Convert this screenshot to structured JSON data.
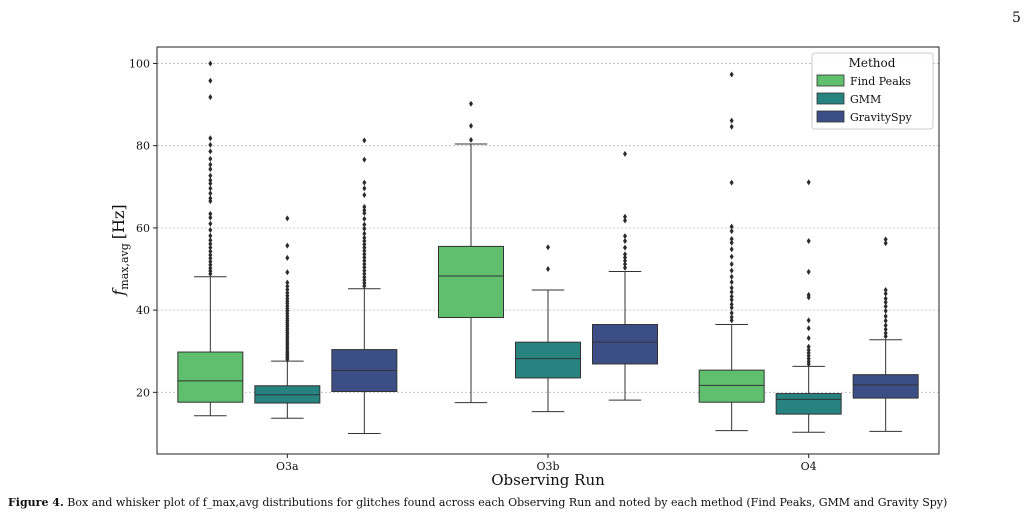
{
  "page_number": "5",
  "caption": {
    "label": "Figure 4.",
    "text": "Box and whisker plot of f_max,avg distributions for glitches found across each Observing Run and noted by each method (Find Peaks, GMM and Gravity Spy)"
  },
  "colors": {
    "Find Peaks": "#5fbf6c",
    "GMM": "#26837f",
    "GravitySpy": "#3c4e86",
    "outlier": "#2b2b2b",
    "grid": "#b8b8b8"
  },
  "chart_data": {
    "type": "box",
    "xlabel": "Observing Run",
    "ylabel_base": "f",
    "ylabel_sub": "max,avg",
    "ylabel_unit": "[Hz]",
    "ylim": [
      5,
      104
    ],
    "yticks": [
      20,
      40,
      60,
      80,
      100
    ],
    "grid": "horizontal",
    "categories": [
      "O3a",
      "O3b",
      "O4"
    ],
    "legend": {
      "title": "Method",
      "position": "top-right"
    },
    "series": [
      {
        "name": "Find Peaks",
        "boxes": [
          {
            "whislo": 14.3,
            "q1": 17.6,
            "med": 22.8,
            "q3": 29.8,
            "whishi": 48.1,
            "fliers": [
              48.8,
              49.5,
              50.2,
              51,
              51.8,
              52.6,
              53.4,
              54.3,
              55.2,
              56.1,
              57,
              58.1,
              59.5,
              61,
              62.5,
              63.4,
              66.5,
              67.2,
              68.4,
              69.6,
              70.8,
              71.6,
              72.7,
              74.3,
              75.4,
              76.8,
              78.6,
              80.2,
              81.8,
              91.8,
              95.8,
              100
            ]
          },
          {
            "whislo": 17.5,
            "q1": 38.2,
            "med": 48.3,
            "q3": 55.5,
            "whishi": 80.4,
            "fliers": [
              81.4,
              84.8,
              90.2
            ]
          },
          {
            "whislo": 10.7,
            "q1": 17.6,
            "med": 21.7,
            "q3": 25.4,
            "whishi": 36.5,
            "fliers": [
              37.5,
              38.3,
              39.3,
              40.6,
              41.4,
              42.5,
              43.3,
              44.4,
              45.4,
              46.8,
              48.1,
              49.6,
              51.2,
              53,
              54.8,
              56.4,
              57.3,
              59.2,
              60.3,
              71,
              84.6,
              86.1,
              97.3
            ]
          }
        ]
      },
      {
        "name": "GMM",
        "boxes": [
          {
            "whislo": 13.7,
            "q1": 17.4,
            "med": 19.4,
            "q3": 21.6,
            "whishi": 27.6,
            "fliers": [
              28,
              28.4,
              28.8,
              29.2,
              29.6,
              30,
              30.5,
              31,
              31.5,
              32,
              32.5,
              33,
              33.5,
              34,
              34.5,
              35,
              35.5,
              36,
              36.5,
              37,
              37.5,
              38,
              38.6,
              39.2,
              39.8,
              40.4,
              41,
              41.6,
              42.2,
              42.8,
              43.5,
              44.2,
              45,
              45.8,
              46.7,
              49.2,
              52.7,
              55.7,
              62.3
            ]
          },
          {
            "whislo": 15.3,
            "q1": 23.5,
            "med": 28.2,
            "q3": 32.2,
            "whishi": 44.9,
            "fliers": [
              50,
              55.3
            ]
          },
          {
            "whislo": 10.3,
            "q1": 14.7,
            "med": 18.3,
            "q3": 19.7,
            "whishi": 26.3,
            "fliers": [
              26.9,
              27.5,
              28.2,
              28.9,
              29.6,
              30.3,
              31.1,
              33.2,
              35.6,
              37.5,
              43.1,
              43.7,
              49.3,
              56.8,
              71.1
            ]
          }
        ]
      },
      {
        "name": "GravitySpy",
        "boxes": [
          {
            "whislo": 10,
            "q1": 20.2,
            "med": 25.3,
            "q3": 30.4,
            "whishi": 45.2,
            "fliers": [
              45.9,
              46.6,
              47.3,
              48,
              48.8,
              49.6,
              50.4,
              51.2,
              52,
              52.8,
              53.6,
              54.4,
              55.2,
              56,
              56.8,
              57.6,
              58.6,
              59.8,
              60.8,
              62.2,
              63.6,
              64.3,
              65.1,
              68,
              69.6,
              71,
              76.6,
              81.3
            ]
          },
          {
            "whislo": 18.1,
            "q1": 26.9,
            "med": 32.2,
            "q3": 36.5,
            "whishi": 49.4,
            "fliers": [
              50.3,
              51.2,
              52,
              52.8,
              53.6,
              55.2,
              56.8,
              58,
              61.8,
              62.7,
              78
            ]
          },
          {
            "whislo": 10.5,
            "q1": 18.6,
            "med": 21.8,
            "q3": 24.3,
            "whishi": 32.8,
            "fliers": [
              33.6,
              34.4,
              35.3,
              36.3,
              37.4,
              38.5,
              39.8,
              40.9,
              41.9,
              42.8,
              44,
              44.9,
              56.3,
              57.2
            ]
          }
        ]
      }
    ]
  }
}
